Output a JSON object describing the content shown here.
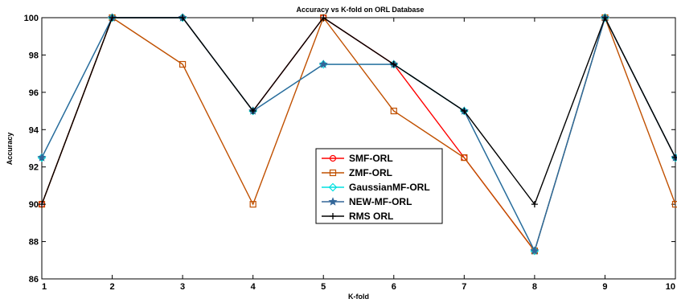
{
  "chart_data": {
    "type": "line",
    "title": "Accuracy vs K-fold on ORL Database",
    "xlabel": "K-fold",
    "ylabel": "Accuracy",
    "x": [
      1,
      2,
      3,
      4,
      5,
      6,
      7,
      8,
      9,
      10
    ],
    "xticks": [
      "1",
      "2",
      "3",
      "4",
      "5",
      "6",
      "7",
      "8",
      "9",
      "10"
    ],
    "xlim": [
      1,
      10
    ],
    "ylim": [
      86,
      100
    ],
    "yticks": [
      "86",
      "88",
      "90",
      "92",
      "94",
      "96",
      "98",
      "100"
    ],
    "grid": false,
    "legend_position": "center",
    "series": [
      {
        "name": "SMF-ORL",
        "color": "#ff0000",
        "marker": "circle",
        "values": [
          90,
          100,
          100,
          95,
          100,
          97.5,
          92.5,
          87.5,
          100,
          92.5
        ]
      },
      {
        "name": "ZMF-ORL",
        "color": "#c05000",
        "marker": "square",
        "values": [
          90,
          100,
          97.5,
          90,
          100,
          95,
          92.5,
          87.5,
          100,
          90
        ]
      },
      {
        "name": "GaussianMF-ORL",
        "color": "#00e0e0",
        "marker": "diamond",
        "values": [
          92.5,
          100,
          100,
          95,
          97.5,
          97.5,
          95,
          87.5,
          100,
          92.5
        ]
      },
      {
        "name": "NEW-MF-ORL",
        "color": "#336699",
        "marker": "star",
        "values": [
          92.5,
          100,
          100,
          95,
          97.5,
          97.5,
          95,
          87.5,
          100,
          92.5
        ]
      },
      {
        "name": "RMS ORL",
        "color": "#000000",
        "marker": "plus",
        "values": [
          90,
          100,
          100,
          95,
          100,
          97.5,
          95,
          90,
          100,
          92.5
        ]
      }
    ]
  }
}
